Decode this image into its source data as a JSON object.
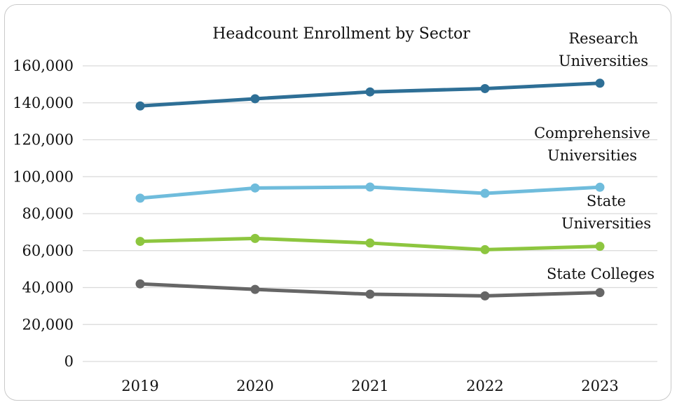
{
  "chart_data": {
    "type": "line",
    "title": "Headcount Enrollment by Sector",
    "xlabel": "",
    "ylabel": "",
    "categories": [
      "2019",
      "2020",
      "2021",
      "2022",
      "2023"
    ],
    "ylim": [
      0,
      160000
    ],
    "yticks": [
      0,
      20000,
      40000,
      60000,
      80000,
      100000,
      120000,
      140000,
      160000
    ],
    "ytick_labels": [
      "0",
      "20,000",
      "40,000",
      "60,000",
      "80,000",
      "100,000",
      "120,000",
      "140,000",
      "160,000"
    ],
    "grid": true,
    "legend": "none",
    "series": [
      {
        "name": "Research Universities",
        "label_lines": [
          "Research",
          "Universities"
        ],
        "color": "#2e6f96",
        "values": [
          138300,
          142200,
          145900,
          147700,
          150600
        ]
      },
      {
        "name": "Comprehensive Universities",
        "label_lines": [
          "Comprehensive",
          "Universities"
        ],
        "color": "#6fbcdc",
        "values": [
          88400,
          93900,
          94400,
          91000,
          94300
        ]
      },
      {
        "name": "State Universities",
        "label_lines": [
          "State",
          "Universities"
        ],
        "color": "#8dc63f",
        "values": [
          65000,
          66600,
          64100,
          60500,
          62300
        ]
      },
      {
        "name": "State Colleges",
        "label_lines": [
          "State Colleges"
        ],
        "color": "#666666",
        "values": [
          42000,
          39000,
          36400,
          35500,
          37300
        ]
      }
    ]
  }
}
